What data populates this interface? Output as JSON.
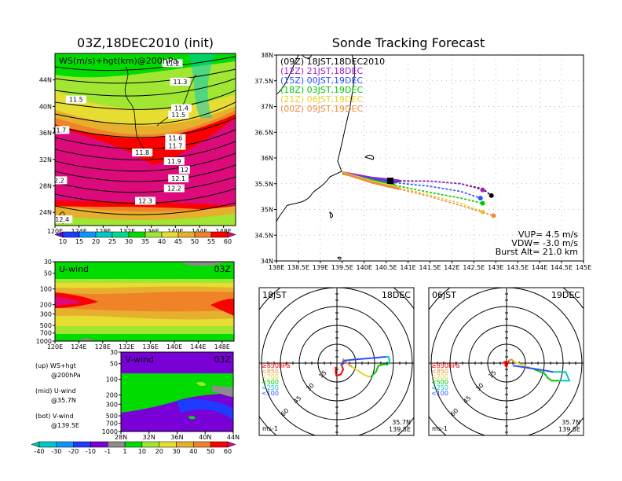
{
  "chart_data": [
    {
      "type": "heatmap",
      "id": "ws200",
      "title": "03Z,18DEC2010 (init)",
      "label": "WS(m/s)+hgt(km)@200hPa",
      "xlabel": "",
      "ylabel": "",
      "x_ticks": [
        "120E",
        "124E",
        "128E",
        "132E",
        "136E",
        "140E",
        "144E",
        "148E"
      ],
      "y_ticks": [
        "24N",
        "28N",
        "32N",
        "36N",
        "40N",
        "44N"
      ],
      "xlim": [
        120,
        150
      ],
      "ylim": [
        22,
        48
      ],
      "contour_labels": [
        {
          "text": "11.2",
          "lon": 139.5,
          "lat": 46.3
        },
        {
          "text": "11.3",
          "lon": 140.8,
          "lat": 43.5
        },
        {
          "text": "11.5",
          "lon": 123.5,
          "lat": 40.8
        },
        {
          "text": "11.4",
          "lon": 141.0,
          "lat": 39.5
        },
        {
          "text": "11.5",
          "lon": 140.5,
          "lat": 38.5
        },
        {
          "text": "11.7",
          "lon": 120.7,
          "lat": 36.2
        },
        {
          "text": "11.6",
          "lon": 140.0,
          "lat": 35.0
        },
        {
          "text": "11.7",
          "lon": 140.0,
          "lat": 33.8
        },
        {
          "text": "11.8",
          "lon": 134.5,
          "lat": 32.8
        },
        {
          "text": "11.9",
          "lon": 139.8,
          "lat": 31.5
        },
        {
          "text": "12",
          "lon": 141.5,
          "lat": 30.2
        },
        {
          "text": "12.1",
          "lon": 140.5,
          "lat": 28.9
        },
        {
          "text": "12.2",
          "lon": 139.8,
          "lat": 27.4
        },
        {
          "text": "12.3",
          "lon": 135.0,
          "lat": 25.5
        },
        {
          "text": "2.2",
          "lon": 120.7,
          "lat": 28.6
        },
        {
          "text": "12.4",
          "lon": 121.2,
          "lat": 22.7
        }
      ],
      "colorbar": {
        "levels": [
          "10",
          "15",
          "20",
          "25",
          "30",
          "35",
          "40",
          "45",
          "50",
          "55",
          "60"
        ],
        "colors": [
          "#7a00d8",
          "#1e3cff",
          "#0a96ff",
          "#00c8c8",
          "#00dc8c",
          "#00dc00",
          "#a0e632",
          "#e6dc32",
          "#e6af2d",
          "#f08228",
          "#fa0000",
          "#dc0a7a"
        ]
      }
    },
    {
      "type": "heatmap",
      "id": "uwind",
      "label": "U-wind",
      "time": "03Z",
      "x_ticks": [
        "120E",
        "124E",
        "128E",
        "132E",
        "136E",
        "140E",
        "144E",
        "148E"
      ],
      "y_ticks": [
        "30",
        "50",
        "100",
        "200",
        "300",
        "500",
        "700",
        "1000"
      ],
      "xlim": [
        120,
        150
      ],
      "ylim_hPa": [
        1000,
        30
      ]
    },
    {
      "type": "heatmap",
      "id": "vwind",
      "label": "V-wind",
      "time": "03Z",
      "x_ticks": [
        "28N",
        "32N",
        "36N",
        "40N",
        "44N"
      ],
      "y_ticks": [
        "30",
        "50",
        "100",
        "200",
        "300",
        "500",
        "700",
        "1000"
      ],
      "xlim": [
        28,
        44
      ],
      "ylim_hPa": [
        1000,
        30
      ],
      "colorbar": {
        "levels": [
          "-40",
          "-30",
          "-20",
          "-10",
          "-1",
          "1",
          "10",
          "20",
          "30",
          "40",
          "50",
          "60"
        ],
        "colors": [
          "#00c8a0",
          "#00c8c8",
          "#0a96ff",
          "#1e3cff",
          "#7a00d8",
          "#8c8c8c",
          "#00dc00",
          "#a0e632",
          "#e6dc32",
          "#e6af2d",
          "#f08228",
          "#fa0000",
          "#dc0a7a"
        ]
      }
    },
    {
      "type": "line",
      "id": "track",
      "title": "Sonde Tracking Forecast",
      "x_ticks": [
        "138E",
        "138.5E",
        "139E",
        "139.5E",
        "140E",
        "140.5E",
        "141E",
        "141.5E",
        "142E",
        "142.5E",
        "143E",
        "143.5E",
        "144E",
        "144.5E",
        "145E"
      ],
      "y_ticks": [
        "34N",
        "34.5N",
        "35N",
        "35.5N",
        "36N",
        "36.5N",
        "37N",
        "37.5N",
        "38N"
      ],
      "xlim": [
        138,
        145
      ],
      "ylim": [
        34,
        38
      ],
      "series": [
        {
          "name": "(09Z) 18JST,18DEC2010",
          "color": "#000000",
          "points": [
            [
              139.5,
              35.71
            ],
            [
              140.2,
              35.6
            ],
            [
              140.8,
              35.55
            ],
            [
              141.5,
              35.55
            ],
            [
              142.2,
              35.5
            ],
            [
              142.7,
              35.4
            ],
            [
              142.9,
              35.27
            ]
          ]
        },
        {
          "name": "(12Z) 21JST,18DEC",
          "color": "#a020c8",
          "points": [
            [
              139.5,
              35.72
            ],
            [
              140.2,
              35.61
            ],
            [
              140.8,
              35.56
            ],
            [
              141.5,
              35.55
            ],
            [
              142.2,
              35.5
            ],
            [
              142.7,
              35.38
            ]
          ]
        },
        {
          "name": "(15Z) 00JST,19DEC",
          "color": "#2850ff",
          "points": [
            [
              139.5,
              35.71
            ],
            [
              140.2,
              35.58
            ],
            [
              140.7,
              35.52
            ],
            [
              141.5,
              35.45
            ],
            [
              142.2,
              35.35
            ],
            [
              142.65,
              35.22
            ]
          ]
        },
        {
          "name": "(18Z) 03JST,19DEC",
          "color": "#00c800",
          "points": [
            [
              139.5,
              35.7
            ],
            [
              140.2,
              35.56
            ],
            [
              140.7,
              35.47
            ],
            [
              141.5,
              35.33
            ],
            [
              142.2,
              35.22
            ],
            [
              142.7,
              35.12
            ]
          ]
        },
        {
          "name": "(21Z) 06JST,19DEC",
          "color": "#e6d232",
          "points": [
            [
              139.5,
              35.72
            ],
            [
              140.2,
              35.54
            ],
            [
              140.8,
              35.42
            ],
            [
              141.5,
              35.28
            ],
            [
              142.2,
              35.12
            ],
            [
              142.7,
              34.95
            ]
          ]
        },
        {
          "name": "(00Z) 09JST,19DEC",
          "color": "#f08c3c",
          "points": [
            [
              139.5,
              35.71
            ],
            [
              140.2,
              35.52
            ],
            [
              140.8,
              35.4
            ],
            [
              141.5,
              35.25
            ],
            [
              142.3,
              35.05
            ],
            [
              142.95,
              34.88
            ]
          ]
        }
      ],
      "annotations": [
        "VUP= 4.5 m/s",
        "VDW= -3.0 m/s",
        "Burst Alt= 21.0 km"
      ]
    },
    {
      "type": "line",
      "id": "hodo1",
      "label_left": "18JST",
      "label_right": "18DEC",
      "unit": "ms-1",
      "loc": [
        "35.7N",
        "139.5E"
      ],
      "rings": [
        "15",
        "30",
        "45",
        "60"
      ],
      "legend": [
        {
          "text": "≥850hPa",
          "color": "#ff0000"
        },
        {
          "text": "<850",
          "color": "#f08c3c"
        },
        {
          "text": "<700",
          "color": "#e6d232"
        },
        {
          "text": "<500",
          "color": "#00c800"
        },
        {
          "text": "<250",
          "color": "#00c8c8"
        },
        {
          "text": "<100",
          "color": "#2850ff"
        }
      ],
      "segments": [
        {
          "color": "#ff0000",
          "points": [
            [
              -1,
              -3
            ],
            [
              -1,
              -8
            ],
            [
              0,
              -10
            ],
            [
              3,
              -9
            ],
            [
              5,
              -5
            ],
            [
              4,
              -2
            ]
          ]
        },
        {
          "color": "#f08c3c",
          "points": [
            [
              4,
              -2
            ],
            [
              5,
              3
            ],
            [
              7,
              1
            ],
            [
              12,
              -3
            ]
          ]
        },
        {
          "color": "#e6d232",
          "points": [
            [
              12,
              -3
            ],
            [
              18,
              -7
            ],
            [
              23,
              -10
            ],
            [
              27,
              -11
            ]
          ]
        },
        {
          "color": "#00c800",
          "points": [
            [
              27,
              -11
            ],
            [
              31,
              -7
            ],
            [
              33,
              -2
            ],
            [
              37,
              -1
            ],
            [
              41,
              -1
            ]
          ]
        },
        {
          "color": "#00c8c8",
          "points": [
            [
              41,
              -1
            ],
            [
              42,
              2
            ],
            [
              41,
              5
            ],
            [
              39,
              5
            ]
          ]
        },
        {
          "color": "#2850ff",
          "points": [
            [
              39,
              5
            ],
            [
              28,
              4
            ],
            [
              15,
              3
            ],
            [
              6,
              2
            ],
            [
              3,
              -2
            ]
          ]
        }
      ]
    },
    {
      "type": "line",
      "id": "hodo2",
      "label_left": "06JST",
      "label_right": "19DEC",
      "unit": "ms-1",
      "loc": [
        "35.7N",
        "139.5E"
      ],
      "rings": [
        "15",
        "30",
        "45",
        "60"
      ],
      "legend": [
        {
          "text": "≥850hPa",
          "color": "#ff0000"
        },
        {
          "text": "<850",
          "color": "#f08c3c"
        },
        {
          "text": "<700",
          "color": "#e6d232"
        },
        {
          "text": "<500",
          "color": "#00c800"
        },
        {
          "text": "<250",
          "color": "#00c8c8"
        },
        {
          "text": "<100",
          "color": "#2850ff"
        }
      ],
      "segments": [
        {
          "color": "#ff0000",
          "points": [
            [
              -3,
              0
            ],
            [
              -1,
              1
            ],
            [
              -1,
              -2
            ],
            [
              0,
              -3
            ],
            [
              1,
              0
            ],
            [
              2,
              2
            ]
          ]
        },
        {
          "color": "#f08c3c",
          "points": [
            [
              2,
              2
            ],
            [
              4,
              3
            ],
            [
              6,
              1
            ]
          ]
        },
        {
          "color": "#e6d232",
          "points": [
            [
              6,
              1
            ],
            [
              14,
              -2
            ],
            [
              22,
              -5
            ]
          ]
        },
        {
          "color": "#00c800",
          "points": [
            [
              22,
              -5
            ],
            [
              30,
              -8
            ],
            [
              33,
              -12
            ],
            [
              36,
              -14
            ],
            [
              42,
              -14
            ]
          ]
        },
        {
          "color": "#00c8c8",
          "points": [
            [
              42,
              -14
            ],
            [
              50,
              -14
            ],
            [
              47,
              -7
            ],
            [
              37,
              -7
            ]
          ]
        },
        {
          "color": "#2850ff",
          "points": [
            [
              37,
              -7
            ],
            [
              25,
              -5
            ],
            [
              12,
              -3
            ],
            [
              5,
              -2
            ]
          ]
        }
      ]
    }
  ],
  "side_notes": [
    {
      "a": "(up) WS+hgt",
      "b": "@200hPa"
    },
    {
      "a": "(mid) U-wind",
      "b": "@35.7N"
    },
    {
      "a": "(bot) V-wind",
      "b": "@139.5E"
    }
  ]
}
